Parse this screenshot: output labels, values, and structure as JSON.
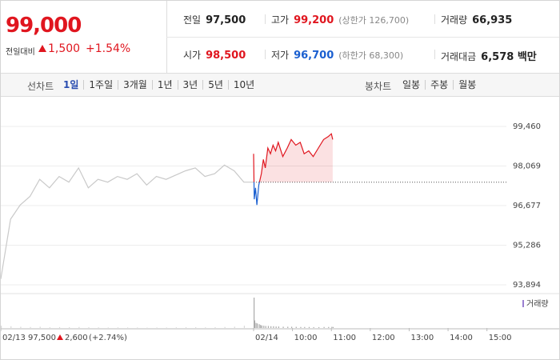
{
  "quote": {
    "price": "99,000",
    "change_label": "전일대비",
    "change": "1,500",
    "change_pct": "+1.54%",
    "stats": [
      [
        {
          "label": "전일",
          "value": "97,500",
          "color": "#222"
        },
        {
          "label": "고가",
          "value": "99,200",
          "note": "(상한가 126,700)",
          "color": "#e0161f"
        },
        {
          "label": "거래량",
          "value": "66,935",
          "color": "#222"
        }
      ],
      [
        {
          "label": "시가",
          "value": "98,500",
          "color": "#e0161f"
        },
        {
          "label": "저가",
          "value": "96,700",
          "note": "(하한가 68,300)",
          "color": "#1a5fd0"
        },
        {
          "label": "거래대금",
          "value": "6,578 백만",
          "color": "#222"
        }
      ]
    ]
  },
  "tabs": {
    "line_label": "선차트",
    "line_periods": [
      "1일",
      "1주일",
      "3개월",
      "1년",
      "3년",
      "5년",
      "10년"
    ],
    "selected": 0,
    "candle_label": "봉차트",
    "candle_periods": [
      "일봉",
      "주봉",
      "월봉"
    ]
  },
  "chart_data": {
    "type": "line",
    "xlim": [
      -390,
      390
    ],
    "ylim": [
      93894,
      99460
    ],
    "yticks": [
      {
        "value": 99460,
        "label": "99,460"
      },
      {
        "value": 98069,
        "label": "98,069"
      },
      {
        "value": 96677,
        "label": "96,677"
      },
      {
        "value": 95286,
        "label": "95,286"
      },
      {
        "value": 93894,
        "label": "93,894"
      }
    ],
    "xticks": [
      {
        "value": -390,
        "label": "02/13"
      },
      {
        "value": 0,
        "label": "02/14"
      },
      {
        "value": 60,
        "label": "10:00"
      },
      {
        "value": 120,
        "label": "11:00"
      },
      {
        "value": 180,
        "label": "12:00"
      },
      {
        "value": 240,
        "label": "13:00"
      },
      {
        "value": 300,
        "label": "14:00"
      },
      {
        "value": 360,
        "label": "15:00"
      }
    ],
    "grid": true,
    "reference_line": 97500,
    "up_color": "#e0161f",
    "down_color": "#1a5fd0",
    "prev_close_label": "97,500",
    "prev_change": "2,600",
    "prev_change_pct": "(+2.74%)",
    "volume_name": "거래량",
    "series": [
      {
        "color": "#c9c9c9",
        "x": [
          -390,
          -375,
          -360,
          -345,
          -330,
          -315,
          -300,
          -285,
          -270,
          -255,
          -240,
          -225,
          -210,
          -195,
          -180,
          -165,
          -150,
          -135,
          -120,
          -105,
          -90,
          -75,
          -60,
          -45,
          -30,
          -15,
          0
        ],
        "values": [
          94100,
          96200,
          96700,
          97000,
          97600,
          97300,
          97700,
          97500,
          98000,
          97300,
          97600,
          97500,
          97700,
          97600,
          97800,
          97400,
          97700,
          97600,
          97750,
          97900,
          98000,
          97700,
          97800,
          98100,
          97900,
          97500,
          97500
        ],
        "volume": [
          900,
          700,
          500,
          400,
          500,
          300,
          350,
          300,
          400,
          300,
          250,
          200,
          250,
          200,
          200,
          150,
          200,
          200,
          250,
          300,
          300,
          250,
          300,
          400,
          500,
          900,
          1200
        ]
      },
      {
        "x": [
          0,
          1,
          3,
          5,
          8,
          10,
          12,
          15,
          18,
          22,
          26,
          30,
          34,
          38,
          45,
          52,
          58,
          65,
          72,
          78,
          85,
          92,
          100,
          108,
          115,
          120,
          122
        ],
        "values": [
          98500,
          96900,
          97300,
          96700,
          97400,
          97600,
          97800,
          98300,
          98000,
          98700,
          98500,
          98800,
          98600,
          98900,
          98400,
          98700,
          99000,
          98800,
          98900,
          98500,
          98600,
          98400,
          98700,
          99000,
          99100,
          99200,
          99000
        ],
        "volume": [
          12000,
          3000,
          2000,
          1800,
          1500,
          1200,
          1000,
          900,
          800,
          800,
          700,
          700,
          600,
          600,
          500,
          500,
          500,
          450,
          400,
          400,
          400,
          350,
          350,
          400,
          400,
          450,
          400
        ]
      }
    ]
  }
}
